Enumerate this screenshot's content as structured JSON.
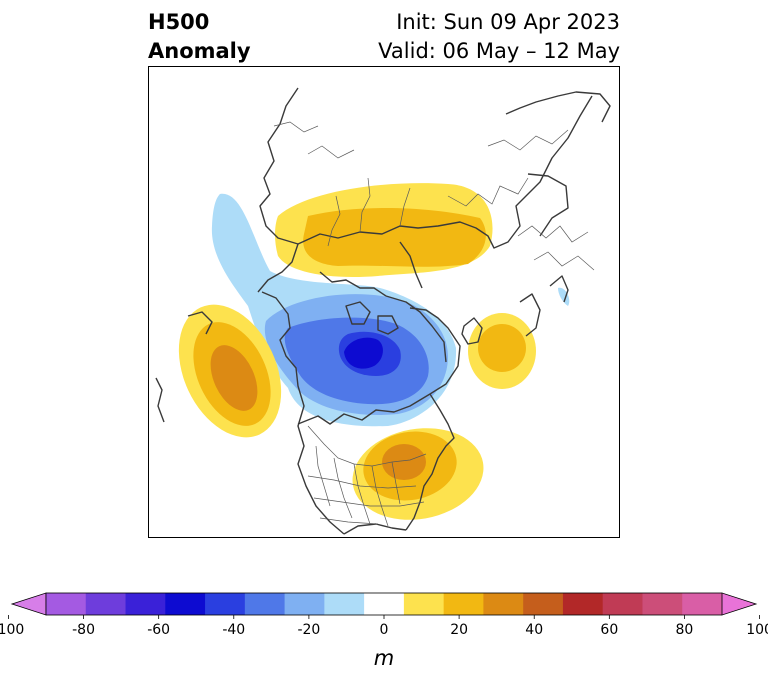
{
  "header": {
    "title_line1": "H500",
    "title_line2": "Anomaly",
    "init_text": "Init: Sun 09 Apr 2023",
    "valid_text": "Valid: 06 May – 12 May"
  },
  "colorbar": {
    "unit": "m",
    "ticks": [
      "-100",
      "-80",
      "-60",
      "-40",
      "-20",
      "0",
      "20",
      "40",
      "60",
      "80",
      "100"
    ],
    "bins": [
      {
        "range": "-100 to -90",
        "color": "#d77ee8"
      },
      {
        "range": "-90 to -80",
        "color": "#a45ae2"
      },
      {
        "range": "-80 to -70",
        "color": "#6e3ddc"
      },
      {
        "range": "-70 to -60",
        "color": "#3a21d8"
      },
      {
        "range": "-60 to -50",
        "color": "#0d0bd1"
      },
      {
        "range": "-50 to -40",
        "color": "#2a3fe0"
      },
      {
        "range": "-40 to -30",
        "color": "#4f78e8"
      },
      {
        "range": "-30 to -20",
        "color": "#7fb0f2"
      },
      {
        "range": "-20 to -10",
        "color": "#addcf8"
      },
      {
        "range": "-10 to 10",
        "color": "#ffffff"
      },
      {
        "range": "10 to 20",
        "color": "#fde24e"
      },
      {
        "range": "20 to 30",
        "color": "#f2b812"
      },
      {
        "range": "30 to 40",
        "color": "#dc8a14"
      },
      {
        "range": "40 to 50",
        "color": "#c55e1c"
      },
      {
        "range": "50 to 60",
        "color": "#b22828"
      },
      {
        "range": "60 to 70",
        "color": "#c03b55"
      },
      {
        "range": "70 to 80",
        "color": "#cc4e79"
      },
      {
        "range": "80 to 90",
        "color": "#d95ea6"
      },
      {
        "range": "90 to 100",
        "color": "#e973d8"
      }
    ],
    "extend": "both"
  },
  "map": {
    "projection": "north polar stereographic",
    "region": "North America and Arctic",
    "features": [
      {
        "name": "Alaska/Gulf of Alaska ridge",
        "anomaly_m": 40
      },
      {
        "name": "Northern Siberia ridge",
        "anomaly_m": 30
      },
      {
        "name": "Canadian Arctic trough",
        "anomaly_m": -60
      },
      {
        "name": "Eastern North America ridge",
        "anomaly_m": 40
      },
      {
        "name": "Northeast Atlantic ridge",
        "anomaly_m": 30
      }
    ]
  }
}
